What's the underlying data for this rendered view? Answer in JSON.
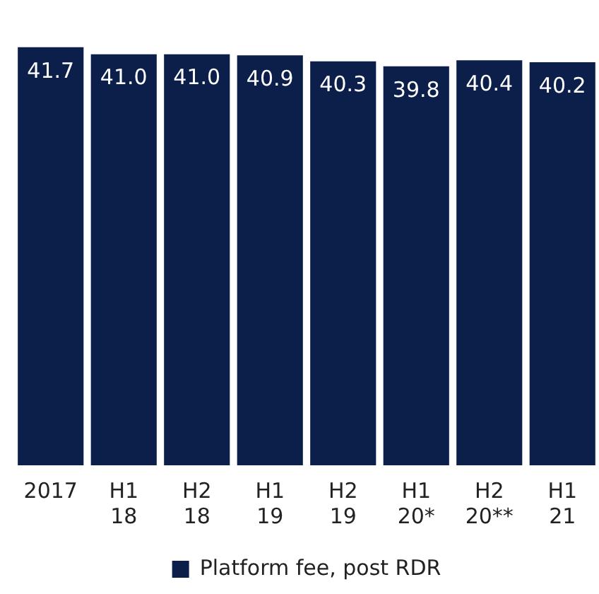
{
  "chart_data": {
    "type": "bar",
    "categories": [
      "2017",
      "H1 18",
      "H2 18",
      "H1 19",
      "H2 19",
      "H1 20*",
      "H2 20**",
      "H1 21"
    ],
    "series": [
      {
        "name": "Platform fee, post RDR",
        "color": "#0c1f4a",
        "values": [
          41.7,
          41.0,
          41.0,
          40.9,
          40.3,
          39.8,
          40.4,
          40.2
        ],
        "value_labels": [
          "41.7",
          "41.0",
          "41.0",
          "40.9",
          "40.3",
          "39.8",
          "40.4",
          "40.2"
        ]
      }
    ],
    "legend": "bottom",
    "grid": false
  }
}
